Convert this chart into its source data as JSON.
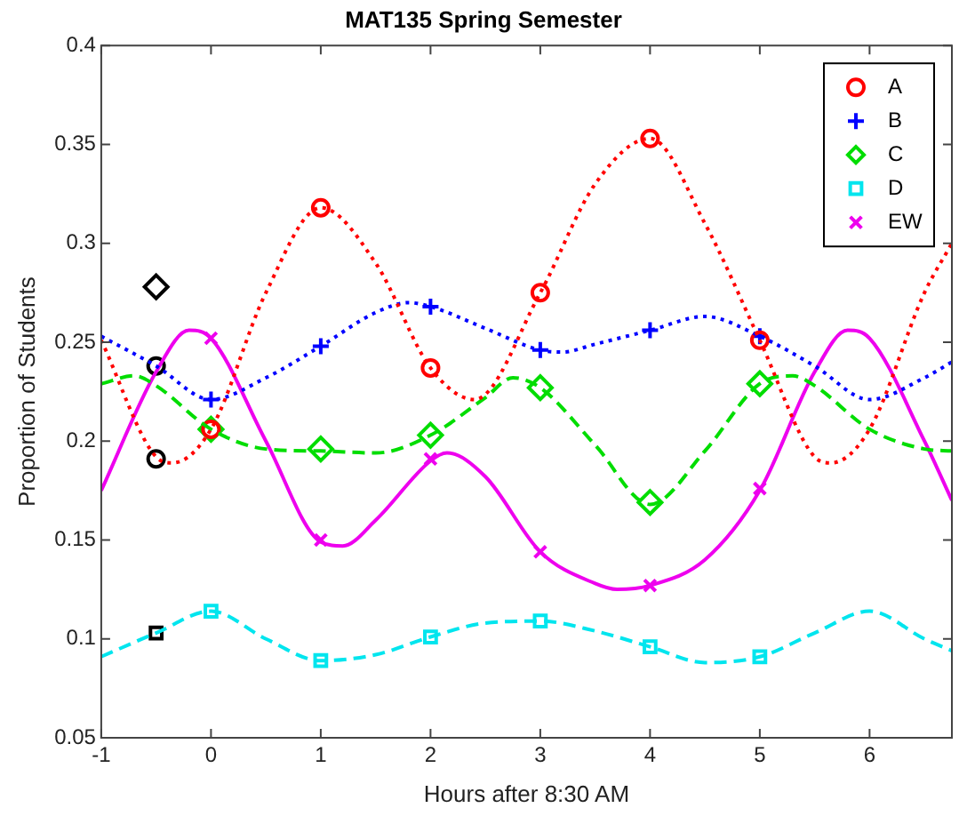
{
  "chart_data": {
    "type": "scatter",
    "title": "MAT135 Spring Semester",
    "xlabel": "Hours after 8:30 AM",
    "ylabel": "Proportion of Students",
    "xlim": [
      -1,
      6.75
    ],
    "xticks": [
      -1,
      0,
      1,
      2,
      3,
      4,
      5,
      6
    ],
    "ylim": [
      0.05,
      0.4
    ],
    "yticks": [
      0.05,
      0.1,
      0.15,
      0.2,
      0.25,
      0.3,
      0.35,
      0.4
    ],
    "grid": false,
    "legend": "top right",
    "series": [
      {
        "type": "line",
        "line_style": "dotted",
        "color": "#ff0000",
        "x": [
          -1,
          -0.5,
          -0.35,
          0,
          0.5,
          1,
          1.5,
          2,
          2.4,
          3,
          3.5,
          4,
          4.5,
          5,
          5.5,
          5.65,
          6,
          6.5,
          6.75
        ],
        "values": [
          0.251,
          0.192,
          0.189,
          0.206,
          0.275,
          0.318,
          0.29,
          0.237,
          0.221,
          0.275,
          0.33,
          0.353,
          0.31,
          0.251,
          0.192,
          0.189,
          0.206,
          0.275,
          0.3
        ]
      },
      {
        "type": "line",
        "line_style": "dotted",
        "color": "#0000ff",
        "x": [
          -1,
          -0.5,
          0,
          0.5,
          1,
          1.5,
          1.8,
          2,
          2.5,
          3,
          3.2,
          3.5,
          4,
          4.5,
          5,
          5.5,
          6,
          6.5,
          6.75
        ],
        "values": [
          0.253,
          0.238,
          0.221,
          0.232,
          0.248,
          0.265,
          0.27,
          0.268,
          0.257,
          0.246,
          0.245,
          0.249,
          0.256,
          0.263,
          0.253,
          0.238,
          0.221,
          0.232,
          0.24
        ]
      },
      {
        "type": "line",
        "line_style": "dashed",
        "color": "#00dd00",
        "x": [
          -1,
          -0.7,
          -0.5,
          0,
          0.5,
          1,
          1.5,
          2,
          2.5,
          2.75,
          3,
          3.5,
          4,
          4.5,
          5,
          5.3,
          5.5,
          6,
          6.5,
          6.75
        ],
        "values": [
          0.229,
          0.233,
          0.228,
          0.206,
          0.196,
          0.195,
          0.194,
          0.203,
          0.222,
          0.232,
          0.227,
          0.198,
          0.168,
          0.195,
          0.229,
          0.233,
          0.228,
          0.206,
          0.196,
          0.195
        ]
      },
      {
        "type": "line",
        "line_style": "dashed",
        "color": "#00e5ee",
        "x": [
          -1,
          -0.5,
          0,
          0.5,
          1,
          1.5,
          2,
          2.5,
          3,
          3.5,
          4,
          4.5,
          5,
          5.5,
          6,
          6.5,
          6.75
        ],
        "values": [
          0.091,
          0.103,
          0.114,
          0.1,
          0.089,
          0.092,
          0.101,
          0.108,
          0.109,
          0.104,
          0.096,
          0.088,
          0.091,
          0.103,
          0.114,
          0.1,
          0.094
        ]
      },
      {
        "type": "line",
        "line_style": "solid",
        "color": "#ee00ee",
        "x": [
          -1,
          -0.5,
          -0.2,
          0,
          0.5,
          1,
          1.2,
          1.5,
          2,
          2.15,
          2.5,
          3,
          3.5,
          3.7,
          4,
          4.5,
          5,
          5.5,
          5.8,
          6,
          6.5,
          6.75
        ],
        "values": [
          0.175,
          0.235,
          0.256,
          0.252,
          0.2,
          0.149,
          0.147,
          0.16,
          0.19,
          0.194,
          0.182,
          0.144,
          0.128,
          0.125,
          0.127,
          0.14,
          0.175,
          0.235,
          0.256,
          0.252,
          0.2,
          0.17
        ]
      },
      {
        "name": "A",
        "marker": "circle",
        "color": "#ff0000",
        "x": [
          0,
          1,
          2,
          3,
          4,
          5
        ],
        "values": [
          0.206,
          0.318,
          0.237,
          0.275,
          0.353,
          0.251
        ]
      },
      {
        "name": "B",
        "marker": "plus",
        "color": "#0000ff",
        "x": [
          0,
          1,
          2,
          3,
          4,
          5
        ],
        "values": [
          0.221,
          0.248,
          0.268,
          0.246,
          0.256,
          0.253
        ]
      },
      {
        "name": "C",
        "marker": "diamond",
        "color": "#00dd00",
        "x": [
          0,
          1,
          2,
          3,
          4,
          5
        ],
        "values": [
          0.206,
          0.196,
          0.203,
          0.227,
          0.169,
          0.229
        ]
      },
      {
        "name": "D",
        "marker": "square",
        "color": "#00e5ee",
        "x": [
          0,
          1,
          2,
          3,
          4,
          5
        ],
        "values": [
          0.114,
          0.089,
          0.101,
          0.109,
          0.096,
          0.091
        ]
      },
      {
        "name": "EW",
        "marker": "cross",
        "color": "#ee00ee",
        "x": [
          0,
          1,
          2,
          3,
          4,
          5
        ],
        "values": [
          0.252,
          0.15,
          0.191,
          0.144,
          0.127,
          0.176
        ]
      },
      {
        "marker": "circle",
        "color": "#000000",
        "x": [
          -0.5
        ],
        "values": [
          0.238
        ]
      },
      {
        "marker": "circle",
        "color": "#000000",
        "x": [
          -0.5
        ],
        "values": [
          0.191
        ]
      },
      {
        "marker": "diamond",
        "color": "#000000",
        "x": [
          -0.5
        ],
        "values": [
          0.278
        ]
      },
      {
        "marker": "square",
        "color": "#000000",
        "x": [
          -0.5
        ],
        "values": [
          0.103
        ]
      }
    ]
  }
}
